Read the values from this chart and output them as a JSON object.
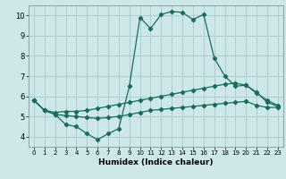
{
  "xlabel": "Humidex (Indice chaleur)",
  "bg_color": "#cce8e8",
  "grid_color": "#b0cccc",
  "line_color": "#1a6b60",
  "xlim": [
    -0.5,
    23.5
  ],
  "ylim": [
    3.5,
    10.5
  ],
  "xticks": [
    0,
    1,
    2,
    3,
    4,
    5,
    6,
    7,
    8,
    9,
    10,
    11,
    12,
    13,
    14,
    15,
    16,
    17,
    18,
    19,
    20,
    21,
    22,
    23
  ],
  "yticks": [
    4,
    5,
    6,
    7,
    8,
    9,
    10
  ],
  "line1_x": [
    0,
    1,
    2,
    3,
    4,
    5,
    6,
    7,
    8,
    9,
    10,
    11,
    12,
    13,
    14,
    15,
    16,
    17,
    18,
    19,
    20,
    21,
    22,
    23
  ],
  "line1_y": [
    5.8,
    5.3,
    5.1,
    4.6,
    4.5,
    4.15,
    3.85,
    4.15,
    4.4,
    6.5,
    9.9,
    9.35,
    10.05,
    10.2,
    10.15,
    9.8,
    10.05,
    7.9,
    7.0,
    6.5,
    6.55,
    6.2,
    5.7,
    5.5
  ],
  "line2_x": [
    0,
    1,
    2,
    3,
    4,
    5,
    6,
    7,
    8,
    9,
    10,
    11,
    12,
    13,
    14,
    15,
    16,
    17,
    18,
    19,
    20,
    21,
    22,
    23
  ],
  "line2_y": [
    5.8,
    5.3,
    5.2,
    5.25,
    5.25,
    5.3,
    5.4,
    5.5,
    5.6,
    5.7,
    5.8,
    5.9,
    6.0,
    6.1,
    6.2,
    6.3,
    6.4,
    6.5,
    6.6,
    6.65,
    6.55,
    6.15,
    5.8,
    5.55
  ],
  "line3_x": [
    0,
    1,
    2,
    3,
    4,
    5,
    6,
    7,
    8,
    9,
    10,
    11,
    12,
    13,
    14,
    15,
    16,
    17,
    18,
    19,
    20,
    21,
    22,
    23
  ],
  "line3_y": [
    5.8,
    5.3,
    5.1,
    5.05,
    5.0,
    4.95,
    4.9,
    4.95,
    5.0,
    5.1,
    5.2,
    5.3,
    5.35,
    5.4,
    5.45,
    5.5,
    5.55,
    5.6,
    5.65,
    5.7,
    5.75,
    5.55,
    5.45,
    5.45
  ]
}
